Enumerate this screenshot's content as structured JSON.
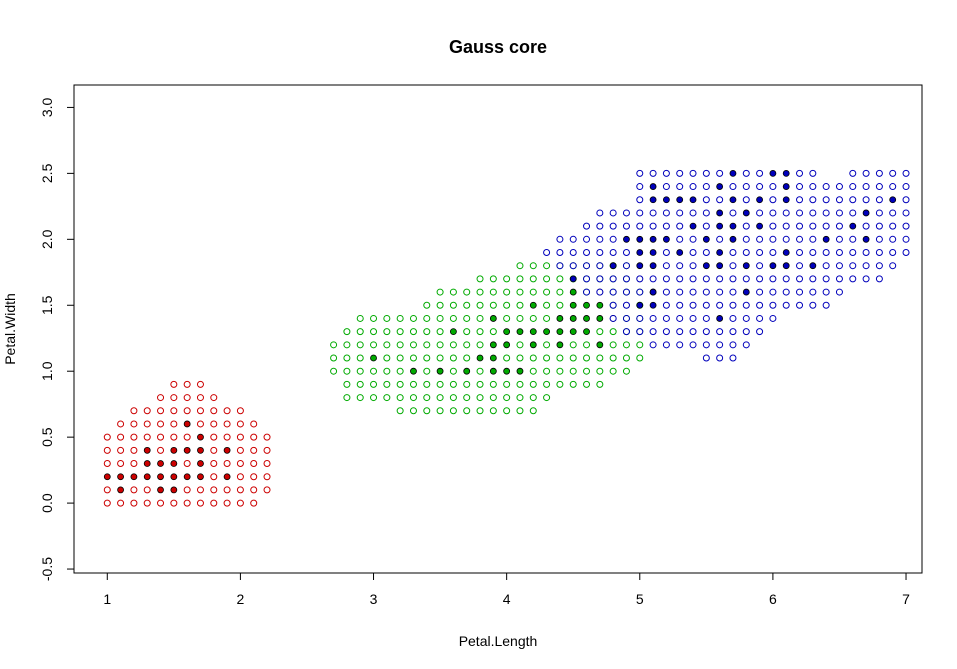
{
  "chart_data": {
    "type": "scatter",
    "title": "Gauss core",
    "xlabel": "Petal.Length",
    "ylabel": "Petal.Width",
    "xlim": [
      0.75,
      7.12
    ],
    "ylim": [
      -0.53,
      3.17
    ],
    "x_ticks": [
      "1",
      "2",
      "3",
      "4",
      "5",
      "6",
      "7"
    ],
    "y_ticks": [
      "-0.5",
      "0.0",
      "0.5",
      "1.0",
      "1.5",
      "2.0",
      "2.5",
      "3.0"
    ],
    "grid": false,
    "grid_step": {
      "x": 0.1,
      "y": 0.1
    },
    "classes": [
      {
        "color": "#cc0000",
        "region_rows": [
          {
            "y": 0.0,
            "x_from": 1.0,
            "x_to": 2.1
          },
          {
            "y": 0.1,
            "x_from": 1.0,
            "x_to": 2.2
          },
          {
            "y": 0.2,
            "x_from": 1.0,
            "x_to": 2.2
          },
          {
            "y": 0.3,
            "x_from": 1.0,
            "x_to": 2.2
          },
          {
            "y": 0.4,
            "x_from": 1.0,
            "x_to": 2.2
          },
          {
            "y": 0.5,
            "x_from": 1.0,
            "x_to": 2.2
          },
          {
            "y": 0.6,
            "x_from": 1.1,
            "x_to": 2.1
          },
          {
            "y": 0.7,
            "x_from": 1.2,
            "x_to": 2.0
          },
          {
            "y": 0.8,
            "x_from": 1.4,
            "x_to": 1.8
          },
          {
            "y": 0.9,
            "x_from": 1.5,
            "x_to": 1.7
          }
        ],
        "core_points": [
          [
            1.1,
            0.1
          ],
          [
            1.5,
            0.1
          ],
          [
            1.4,
            0.1
          ],
          [
            1.0,
            0.2
          ],
          [
            1.1,
            0.2
          ],
          [
            1.2,
            0.2
          ],
          [
            1.3,
            0.2
          ],
          [
            1.4,
            0.2
          ],
          [
            1.5,
            0.2
          ],
          [
            1.6,
            0.2
          ],
          [
            1.7,
            0.2
          ],
          [
            1.9,
            0.2
          ],
          [
            1.3,
            0.3
          ],
          [
            1.4,
            0.3
          ],
          [
            1.5,
            0.3
          ],
          [
            1.7,
            0.3
          ],
          [
            1.3,
            0.4
          ],
          [
            1.5,
            0.4
          ],
          [
            1.6,
            0.4
          ],
          [
            1.7,
            0.4
          ],
          [
            1.9,
            0.4
          ],
          [
            1.7,
            0.5
          ],
          [
            1.6,
            0.6
          ]
        ]
      },
      {
        "color": "#00aa00",
        "region_rows": [
          {
            "y": 0.7,
            "x_from": 3.2,
            "x_to": 4.2
          },
          {
            "y": 0.8,
            "x_from": 2.8,
            "x_to": 4.3
          },
          {
            "y": 0.9,
            "x_from": 2.8,
            "x_to": 4.7
          },
          {
            "y": 1.0,
            "x_from": 2.7,
            "x_to": 4.9
          },
          {
            "y": 1.1,
            "x_from": 2.7,
            "x_to": 5.0
          },
          {
            "y": 1.2,
            "x_from": 2.7,
            "x_to": 5.0
          },
          {
            "y": 1.3,
            "x_from": 2.8,
            "x_to": 5.0
          },
          {
            "y": 1.4,
            "x_from": 2.9,
            "x_to": 5.0
          },
          {
            "y": 1.5,
            "x_from": 3.4,
            "x_to": 5.0
          },
          {
            "y": 1.6,
            "x_from": 3.5,
            "x_to": 5.0
          },
          {
            "y": 1.7,
            "x_from": 3.8,
            "x_to": 5.0
          },
          {
            "y": 1.8,
            "x_from": 4.1,
            "x_to": 4.9
          }
        ],
        "core_points": [
          [
            3.3,
            1.0
          ],
          [
            3.5,
            1.0
          ],
          [
            3.7,
            1.0
          ],
          [
            3.9,
            1.0
          ],
          [
            4.0,
            1.0
          ],
          [
            4.1,
            1.0
          ],
          [
            3.0,
            1.1
          ],
          [
            3.8,
            1.1
          ],
          [
            3.9,
            1.1
          ],
          [
            3.9,
            1.2
          ],
          [
            4.0,
            1.2
          ],
          [
            4.2,
            1.2
          ],
          [
            4.4,
            1.2
          ],
          [
            4.7,
            1.2
          ],
          [
            3.6,
            1.3
          ],
          [
            4.0,
            1.3
          ],
          [
            4.1,
            1.3
          ],
          [
            4.2,
            1.3
          ],
          [
            4.3,
            1.3
          ],
          [
            4.4,
            1.3
          ],
          [
            4.5,
            1.3
          ],
          [
            4.6,
            1.3
          ],
          [
            3.9,
            1.4
          ],
          [
            4.4,
            1.4
          ],
          [
            4.5,
            1.4
          ],
          [
            4.6,
            1.4
          ],
          [
            4.7,
            1.4
          ],
          [
            4.8,
            1.4
          ],
          [
            4.2,
            1.5
          ],
          [
            4.5,
            1.5
          ],
          [
            4.6,
            1.5
          ],
          [
            4.7,
            1.5
          ],
          [
            4.9,
            1.5
          ],
          [
            4.5,
            1.6
          ],
          [
            4.7,
            1.6
          ],
          [
            5.1,
            1.6
          ],
          [
            5.0,
            1.7
          ]
        ]
      },
      {
        "color": "#0000bb",
        "region_rows": [
          {
            "y": 1.1,
            "x_from": 5.5,
            "x_to": 5.7
          },
          {
            "y": 1.2,
            "x_from": 5.1,
            "x_to": 5.8
          },
          {
            "y": 1.3,
            "x_from": 4.9,
            "x_to": 5.9
          },
          {
            "y": 1.4,
            "x_from": 4.8,
            "x_to": 6.0
          },
          {
            "y": 1.5,
            "x_from": 4.8,
            "x_to": 6.4
          },
          {
            "y": 1.6,
            "x_from": 4.6,
            "x_to": 6.5
          },
          {
            "y": 1.7,
            "x_from": 4.5,
            "x_to": 6.8
          },
          {
            "y": 1.8,
            "x_from": 4.4,
            "x_to": 6.9
          },
          {
            "y": 1.9,
            "x_from": 4.3,
            "x_to": 7.0
          },
          {
            "y": 2.0,
            "x_from": 4.4,
            "x_to": 7.0
          },
          {
            "y": 2.1,
            "x_from": 4.6,
            "x_to": 7.0
          },
          {
            "y": 2.2,
            "x_from": 4.7,
            "x_to": 7.0
          },
          {
            "y": 2.3,
            "x_from": 5.0,
            "x_to": 7.0
          },
          {
            "y": 2.4,
            "x_from": 5.0,
            "x_to": 7.0
          },
          {
            "y": 2.5,
            "x_from": 5.0,
            "x_to": 6.3,
            "x_from2": 6.6,
            "x_to2": 7.0
          }
        ],
        "core_points": [
          [
            5.6,
            1.4
          ],
          [
            5.8,
            1.6
          ],
          [
            4.5,
            1.7
          ],
          [
            5.1,
            1.5
          ],
          [
            5.0,
            1.5
          ],
          [
            5.1,
            1.6
          ],
          [
            4.8,
            1.8
          ],
          [
            5.0,
            1.8
          ],
          [
            5.1,
            1.8
          ],
          [
            5.5,
            1.8
          ],
          [
            5.6,
            1.8
          ],
          [
            5.8,
            1.8
          ],
          [
            6.0,
            1.8
          ],
          [
            6.1,
            1.8
          ],
          [
            6.3,
            1.8
          ],
          [
            5.0,
            1.9
          ],
          [
            5.1,
            1.9
          ],
          [
            5.3,
            1.9
          ],
          [
            5.6,
            1.9
          ],
          [
            6.1,
            1.9
          ],
          [
            4.9,
            2.0
          ],
          [
            5.0,
            2.0
          ],
          [
            5.1,
            2.0
          ],
          [
            5.2,
            2.0
          ],
          [
            5.5,
            2.0
          ],
          [
            5.7,
            2.0
          ],
          [
            6.4,
            2.0
          ],
          [
            6.7,
            2.0
          ],
          [
            5.4,
            2.1
          ],
          [
            5.6,
            2.1
          ],
          [
            5.7,
            2.1
          ],
          [
            5.9,
            2.1
          ],
          [
            6.6,
            2.1
          ],
          [
            5.6,
            2.2
          ],
          [
            5.8,
            2.2
          ],
          [
            6.7,
            2.2
          ],
          [
            5.1,
            2.3
          ],
          [
            5.2,
            2.3
          ],
          [
            5.3,
            2.3
          ],
          [
            5.4,
            2.3
          ],
          [
            5.7,
            2.3
          ],
          [
            5.9,
            2.3
          ],
          [
            6.1,
            2.3
          ],
          [
            6.9,
            2.3
          ],
          [
            5.1,
            2.4
          ],
          [
            5.6,
            2.4
          ],
          [
            6.1,
            2.4
          ],
          [
            5.7,
            2.5
          ],
          [
            6.0,
            2.5
          ],
          [
            6.1,
            2.5
          ]
        ]
      }
    ]
  }
}
